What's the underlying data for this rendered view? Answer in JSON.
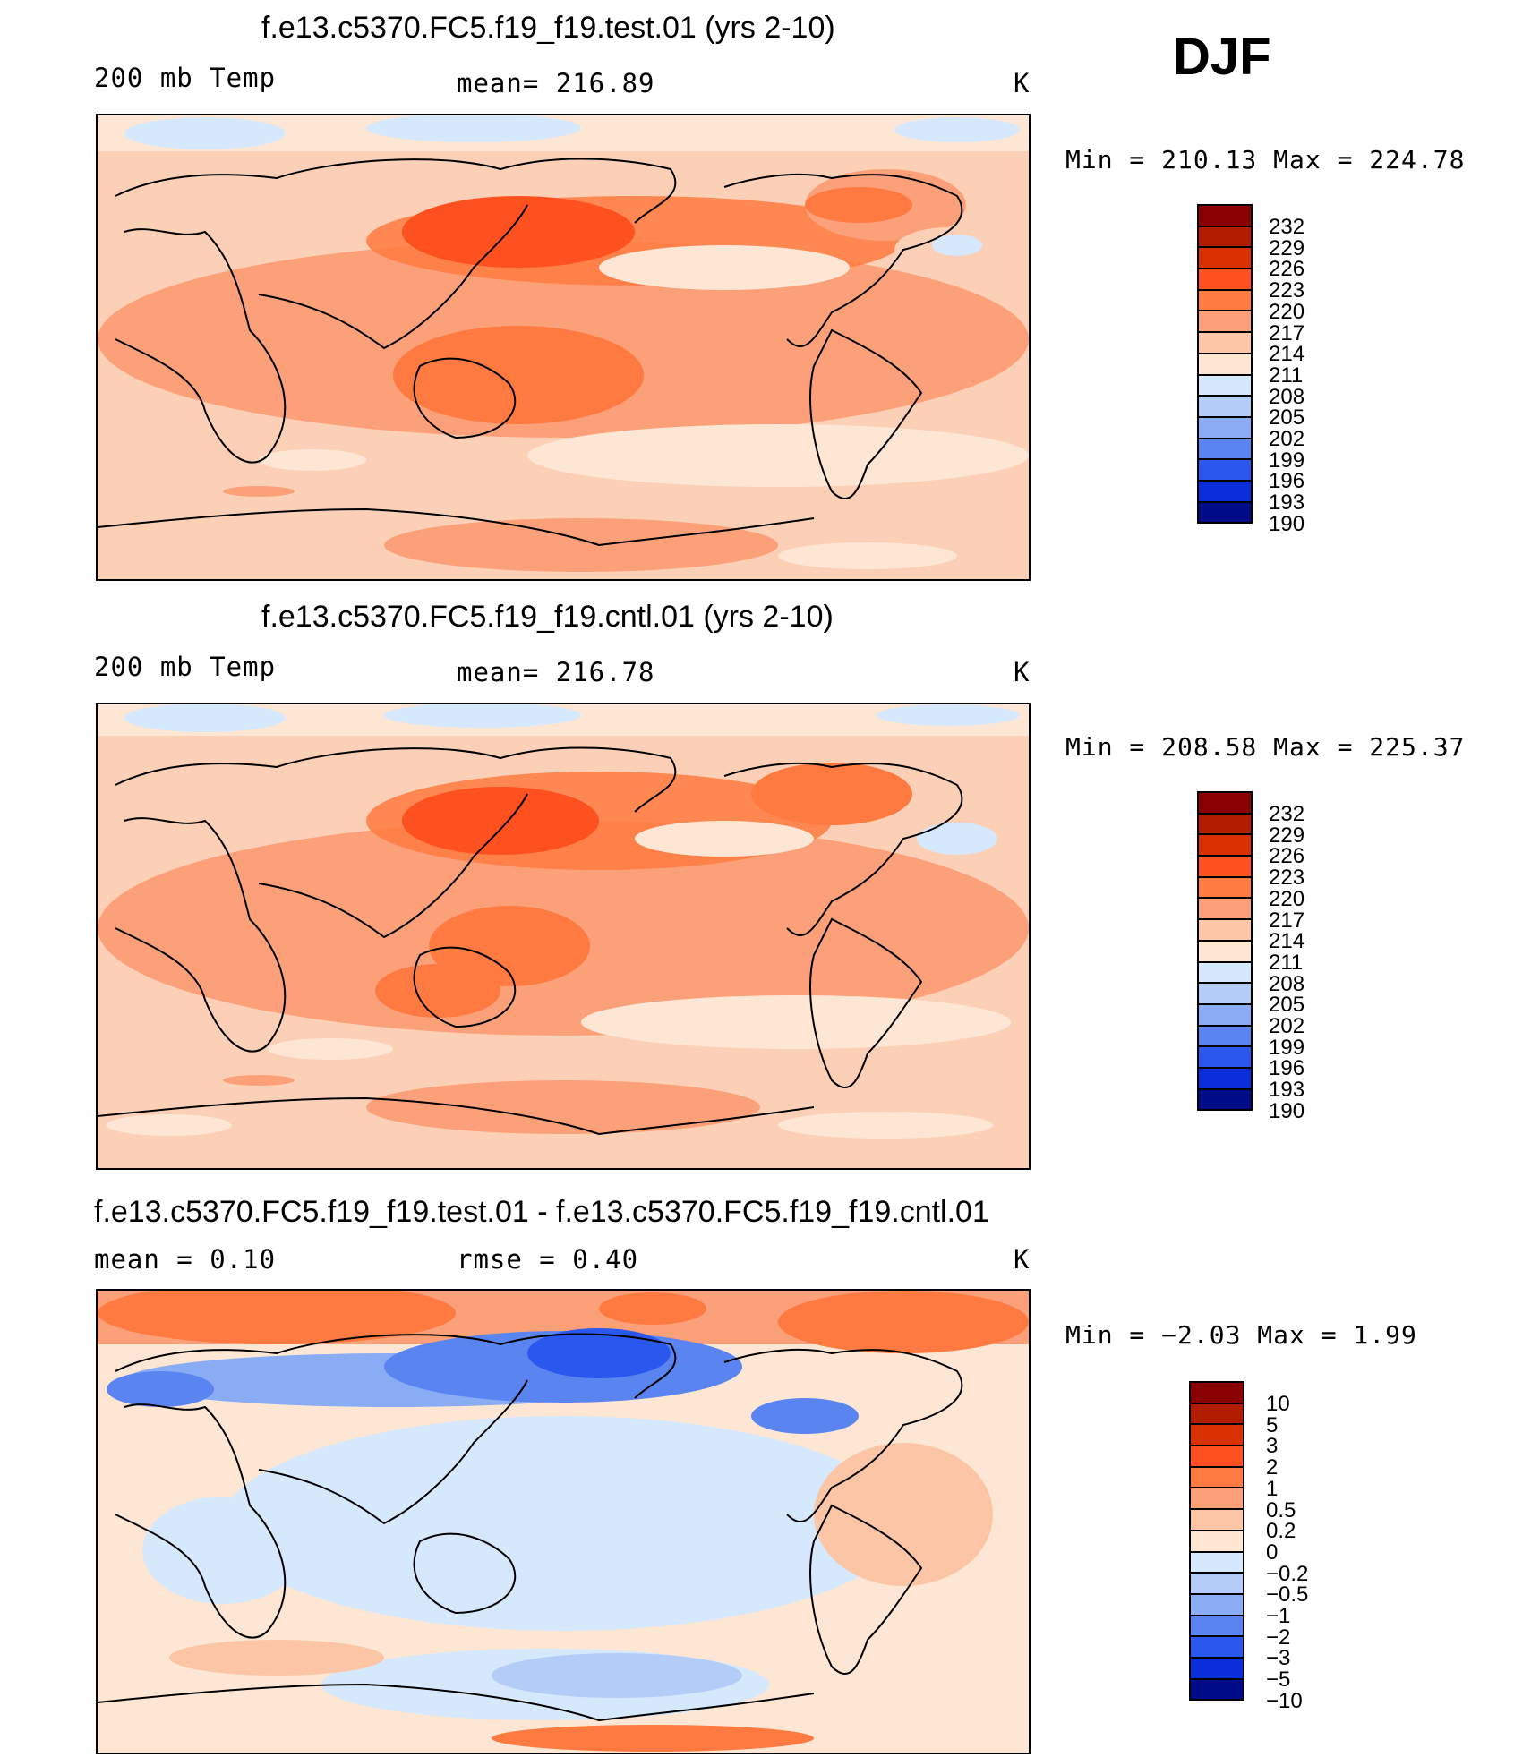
{
  "season": "DJF",
  "units": "K",
  "panels": [
    {
      "title": "f.e13.c5370.FC5.f19_f19.test.01 (yrs 2-10)",
      "left_label": "200 mb Temp",
      "center_label": "mean= 216.89",
      "units": "K",
      "stats": "Min = 210.13 Max = 224.78",
      "colorbar_labels": [
        "232",
        "229",
        "226",
        "223",
        "220",
        "217",
        "214",
        "211",
        "208",
        "205",
        "202",
        "199",
        "196",
        "193",
        "190"
      ],
      "colors": [
        "#8b0000",
        "#b41c00",
        "#d93000",
        "#ff5020",
        "#ff7a40",
        "#fca07a",
        "#fcc6a6",
        "#fde6d4",
        "#d6e8fb",
        "#b4cdf8",
        "#8aacf5",
        "#5a84f0",
        "#2a58ee",
        "#0a2edb",
        "#000b88"
      ]
    },
    {
      "title": "f.e13.c5370.FC5.f19_f19.cntl.01 (yrs 2-10)",
      "left_label": "200 mb Temp",
      "center_label": "mean= 216.78",
      "units": "K",
      "stats": "Min = 208.58 Max = 225.37",
      "colorbar_labels": [
        "232",
        "229",
        "226",
        "223",
        "220",
        "217",
        "214",
        "211",
        "208",
        "205",
        "202",
        "199",
        "196",
        "193",
        "190"
      ],
      "colors": [
        "#8b0000",
        "#b41c00",
        "#d93000",
        "#ff5020",
        "#ff7a40",
        "#fca07a",
        "#fcc6a6",
        "#fde6d4",
        "#d6e8fb",
        "#b4cdf8",
        "#8aacf5",
        "#5a84f0",
        "#2a58ee",
        "#0a2edb",
        "#000b88"
      ]
    },
    {
      "title": "f.e13.c5370.FC5.f19_f19.test.01 - f.e13.c5370.FC5.f19_f19.cntl.01",
      "left_label": "mean =    0.10",
      "center_label": "rmse =    0.40",
      "units": "K",
      "stats": "Min =  −2.03 Max =    1.99",
      "colorbar_labels": [
        "10",
        "5",
        "3",
        "2",
        "1",
        "0.5",
        "0.2",
        "0",
        "−0.2",
        "−0.5",
        "−1",
        "−2",
        "−3",
        "−5",
        "−10"
      ],
      "colors": [
        "#8b0000",
        "#b41c00",
        "#d93000",
        "#ff5020",
        "#ff7a40",
        "#fca07a",
        "#fcc6a6",
        "#fde6d4",
        "#d6e8fb",
        "#b4cdf8",
        "#8aacf5",
        "#5a84f0",
        "#2a58ee",
        "#0a2edb",
        "#000b88"
      ]
    }
  ]
}
